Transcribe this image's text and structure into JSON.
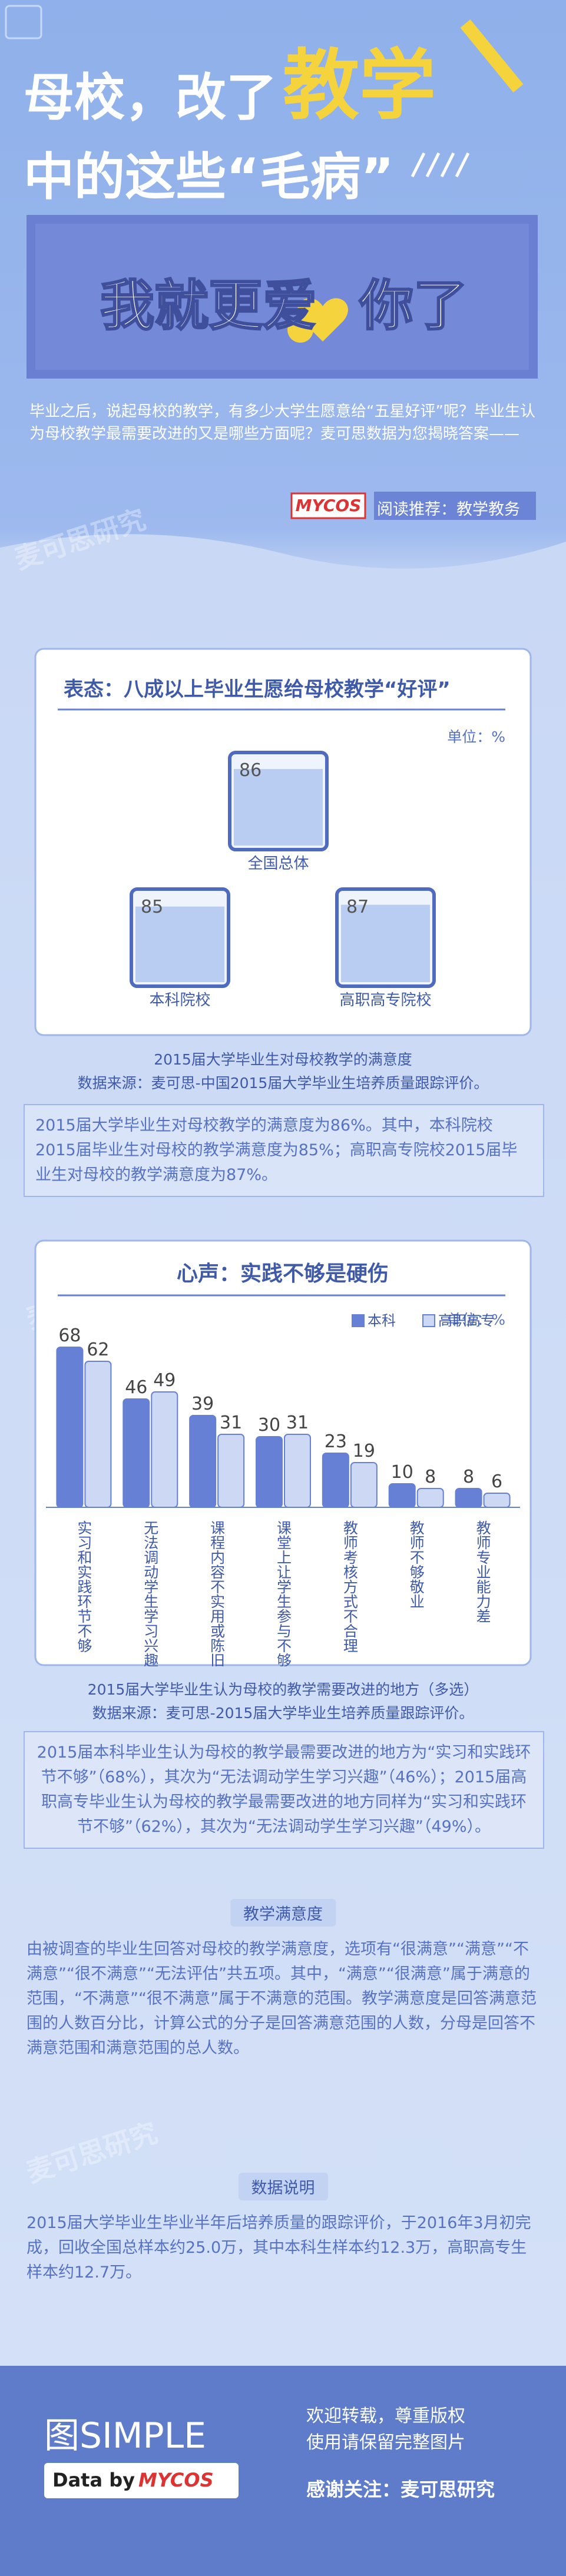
{
  "header": {
    "title_part1": "母校，改了",
    "title_highlight": "教学",
    "title_line2": "中的这些“毛病”",
    "banner_part1": "我就更爱",
    "banner_part2": "你了"
  },
  "intro": "毕业之后，说起母校的教学，有多少大学生愿意给“五星好评”呢？毕业生认为母校教学最需要改进的又是哪些方面呢？麦可思数据为您揭晓答案——",
  "badge": {
    "logo": "MYCOS",
    "text": "阅读推荐：教学教务"
  },
  "watermark": "麦可思研究",
  "chart_data": [
    {
      "type": "glass",
      "title": "表态：八成以上毕业生愿给母校教学“好评”",
      "unit": "单位：%",
      "categories": [
        "全国总体",
        "本科院校",
        "高职高专院校"
      ],
      "values": [
        86,
        85,
        87
      ],
      "color": "#4f6bbf",
      "caption": "2015届大学毕业生对母校教学的满意度",
      "source": "数据来源：麦可思-中国2015届大学毕业生培养质量跟踪评价。"
    },
    {
      "type": "bar",
      "title": "心声：实践不够是硬伤",
      "unit": "单位：%",
      "categories": [
        "实习和实践环节不够",
        "无法调动学生学习兴趣",
        "课程内容不实用或陈旧",
        "课堂上让学生参与不够",
        "教师考核方式不合理",
        "教师不够敬业",
        "教师专业能力差"
      ],
      "series": [
        {
          "name": "本科",
          "color": "#6580d4",
          "values": [
            68,
            46,
            39,
            30,
            23,
            10,
            8
          ]
        },
        {
          "name": "高职高专",
          "color": "#cdd9f4",
          "values": [
            62,
            49,
            31,
            31,
            19,
            8,
            6
          ]
        }
      ],
      "legend": "top-right",
      "caption": "2015届大学毕业生认为母校的教学需要改进的地方（多选）",
      "source": "数据来源：麦可思-2015届大学毕业生培养质量跟踪评价。"
    }
  ],
  "summary1": "2015届大学毕业生对母校教学的满意度为86%。其中，本科院校2015届毕业生对母校的教学满意度为85%；高职高专院校2015届毕业生对母校的教学满意度为87%。",
  "summary2": "2015届本科毕业生认为母校的教学最需要改进的地方为“实习和实践环节不够”（68%），其次为“无法调动学生学习兴趣”（46%）；2015届高职高专毕业生认为母校的教学最需要改进的地方同样为“实习和实践环节不够”（62%），其次为“无法调动学生学习兴趣”（49%）。",
  "notes": [
    {
      "title": "教学满意度",
      "text": "由被调查的毕业生回答对母校的教学满意度，选项有“很满意”“满意”“不满意”“很不满意”“无法评估”共五项。其中，“满意”“很满意”属于满意的范围，“不满意”“很不满意”属于不满意的范围。教学满意度是回答满意范围的人数百分比，计算公式的分子是回答满意范围的人数，分母是回答不满意范围和满意范围的总人数。"
    },
    {
      "title": "数据说明",
      "text": "2015届大学毕业生毕业半年后培养质量的跟踪评价，于2016年3月初完成，回收全国总样本约25.0万，其中本科生样本约12.3万，高职高专生样本约12.7万。"
    }
  ],
  "footer": {
    "brand": "图SIMPLE",
    "data_by": "Data by",
    "logo": "MYCOS",
    "line1": "欢迎转载，尊重版权",
    "line2": "使用请保留完整图片",
    "line3": "感谢关注：麦可思研究"
  }
}
